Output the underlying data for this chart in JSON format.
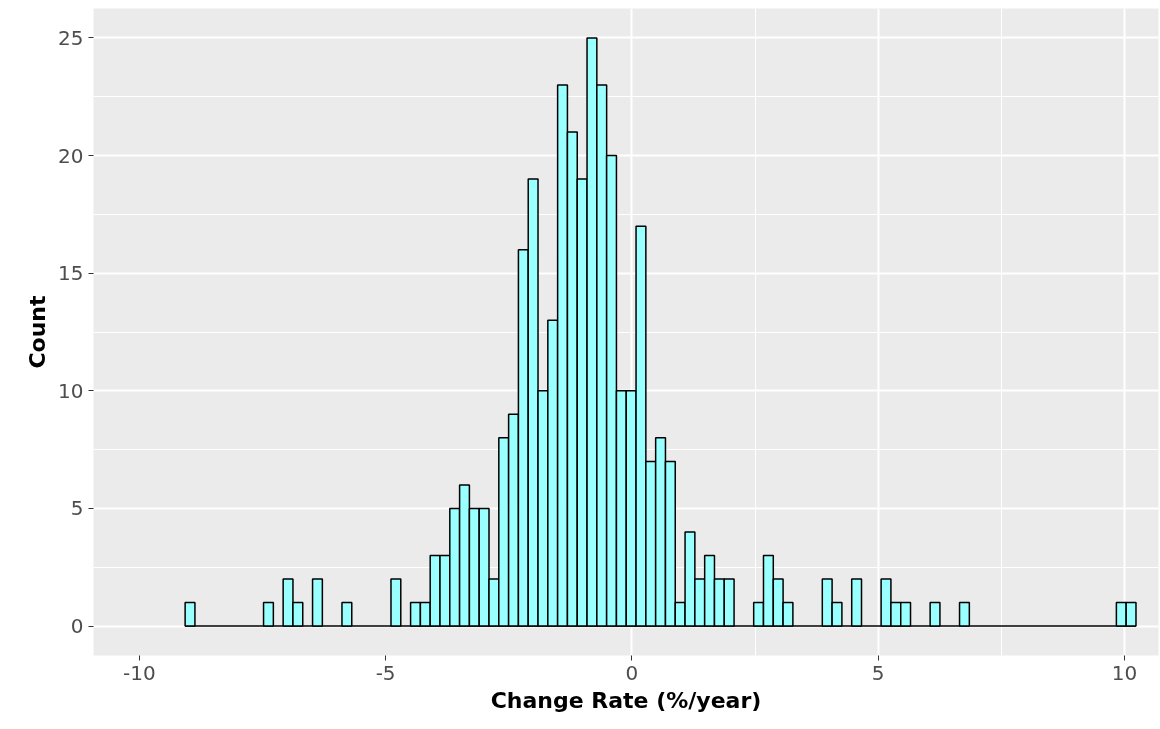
{
  "chart_data": {
    "type": "histogram",
    "xlabel": "Change Rate (%/year)",
    "ylabel": "Count",
    "bins": [
      -9.07,
      -8.871,
      -8.672,
      -8.473,
      -8.274,
      -8.075,
      -7.876,
      -7.677,
      -7.478,
      -7.279,
      -7.08,
      -6.881,
      -6.682,
      -6.483,
      -6.284,
      -6.085,
      -5.886,
      -5.687,
      -5.488,
      -5.289,
      -5.09,
      -4.891,
      -4.692,
      -4.493,
      -4.294,
      -4.095,
      -3.896,
      -3.697,
      -3.498,
      -3.299,
      -3.1,
      -2.901,
      -2.702,
      -2.503,
      -2.304,
      -2.105,
      -1.906,
      -1.707,
      -1.508,
      -1.309,
      -1.11,
      -0.911,
      -0.712,
      -0.513,
      -0.314,
      -0.115,
      0.084,
      0.283,
      0.482,
      0.681,
      0.88,
      1.079,
      1.278,
      1.477,
      1.676,
      1.875,
      2.074,
      2.273,
      2.472,
      2.671,
      2.87,
      3.069,
      3.268,
      3.467,
      3.666,
      3.865,
      4.064,
      4.263,
      4.462,
      4.661,
      4.86,
      5.059,
      5.258,
      5.457,
      5.656,
      5.855,
      6.054,
      6.253,
      6.452,
      6.651,
      6.85,
      7.049,
      7.248,
      7.447,
      7.646,
      7.845,
      8.044,
      8.243,
      8.442,
      8.641,
      8.84,
      9.039,
      9.238,
      9.437,
      9.636,
      9.835,
      10.034,
      10.233
    ],
    "values": [
      1,
      0,
      0,
      0,
      0,
      0,
      0,
      0,
      1,
      0,
      2,
      1,
      0,
      2,
      0,
      0,
      1,
      0,
      0,
      0,
      0,
      2,
      0,
      1,
      1,
      3,
      3,
      5,
      6,
      5,
      5,
      2,
      8,
      9,
      16,
      19,
      10,
      13,
      23,
      21,
      19,
      25,
      23,
      20,
      10,
      10,
      17,
      7,
      8,
      7,
      1,
      4,
      2,
      3,
      2,
      2,
      0,
      0,
      1,
      3,
      2,
      1,
      0,
      0,
      0,
      2,
      1,
      0,
      2,
      0,
      0,
      2,
      1,
      1,
      0,
      0,
      1,
      0,
      0,
      1,
      0,
      0,
      0,
      0,
      0,
      0,
      0,
      0,
      0,
      0,
      0,
      0,
      0,
      0,
      0,
      1,
      1
    ],
    "color": "#99ffff",
    "xlim": [
      -10.93,
      10.69
    ],
    "ylim": [
      -1.25,
      26.25
    ],
    "xticks": [
      -10,
      -5,
      0,
      5,
      10
    ],
    "yticks": [
      0,
      5,
      10,
      15,
      20,
      25
    ],
    "grid": true
  }
}
